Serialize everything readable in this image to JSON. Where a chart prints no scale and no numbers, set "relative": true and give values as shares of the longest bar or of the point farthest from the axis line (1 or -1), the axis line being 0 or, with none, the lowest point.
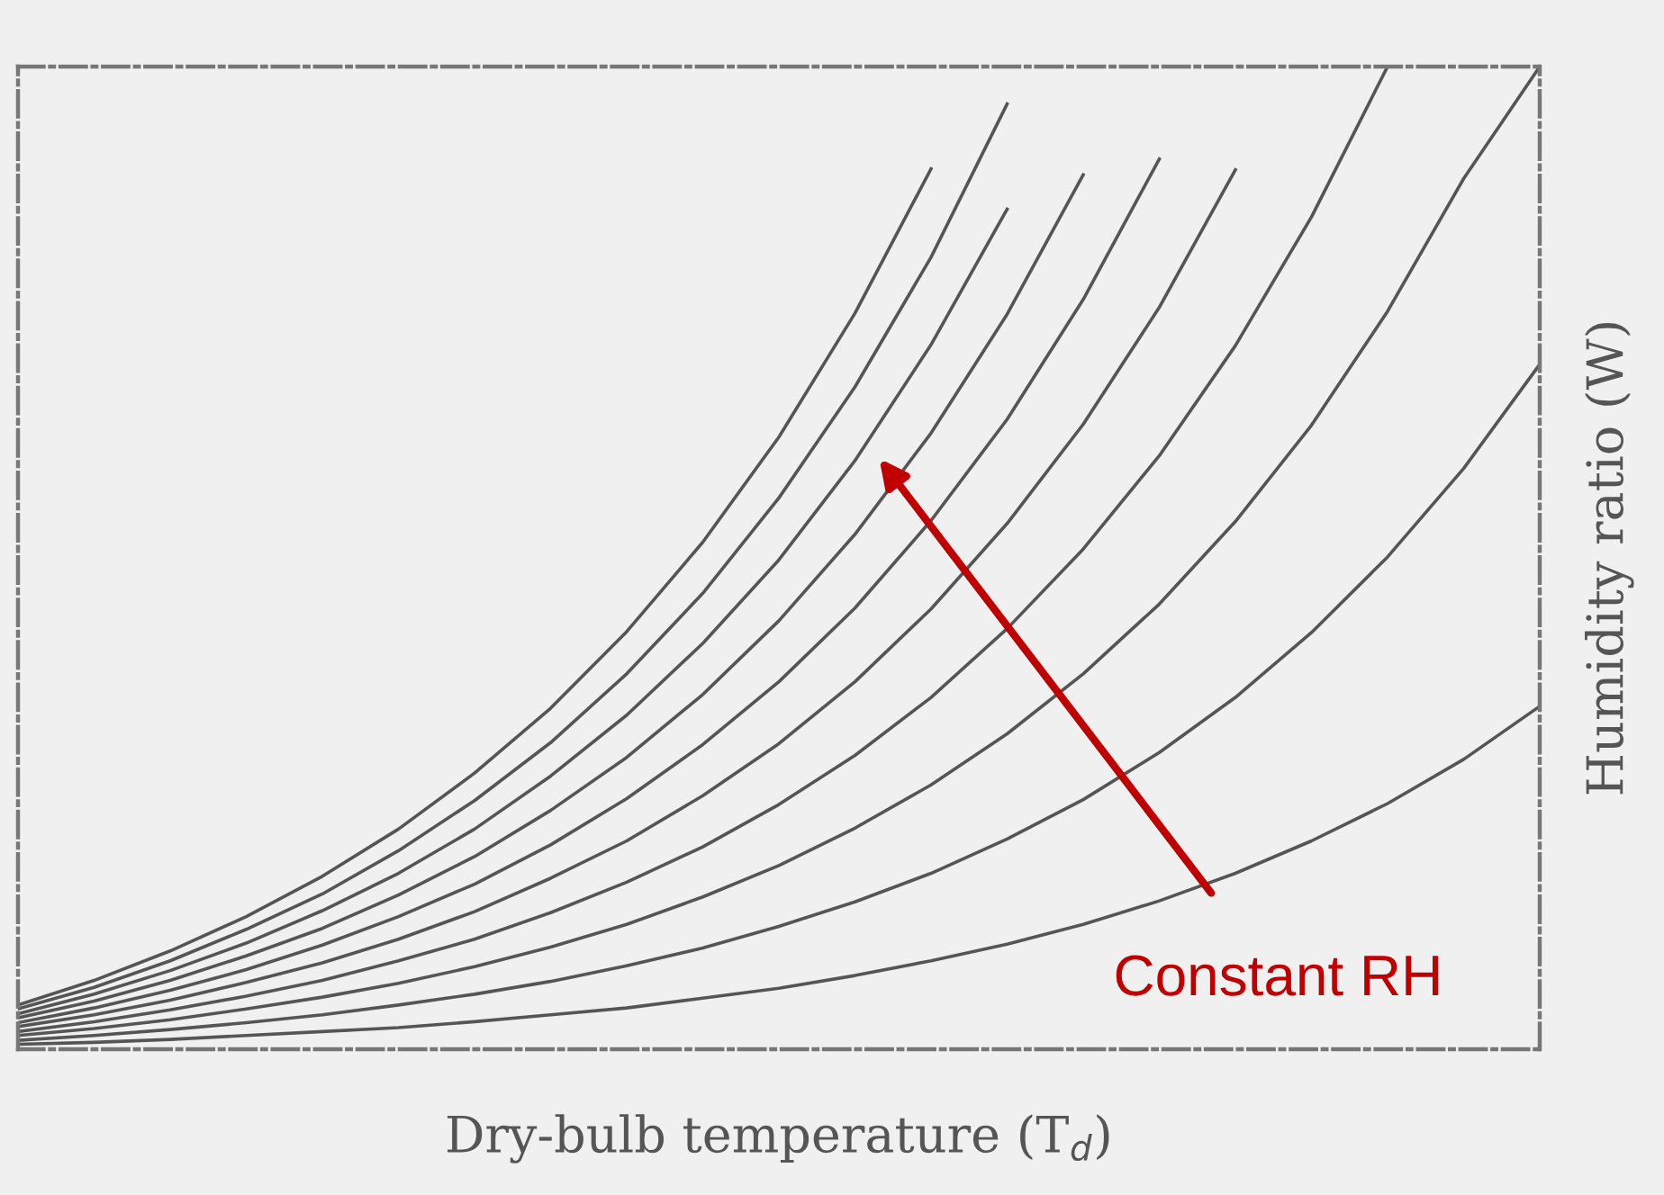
{
  "chart_data": {
    "type": "line",
    "relative": true,
    "tick_labels": false,
    "xlabel": "Dry-bulb temperature (T$_{d}$)",
    "ylabel": "Humidity ratio (W)",
    "annotations": [
      "Constant RH"
    ],
    "categories": [
      null,
      null,
      null,
      null,
      null,
      null,
      null,
      null,
      null,
      null,
      null,
      null,
      null,
      null,
      null,
      null,
      null,
      null,
      null,
      null,
      null
    ],
    "series": [
      {
        "color": "#555555",
        "values": [
          0.005,
          0.007,
          0.01,
          0.014,
          0.018,
          0.022,
          0.028,
          0.035,
          0.042,
          0.052,
          0.062,
          0.075,
          0.09,
          0.107,
          0.127,
          0.151,
          0.179,
          0.212,
          0.25,
          0.295,
          0.349
        ]
      },
      {
        "color": "#555555",
        "values": [
          0.009,
          0.014,
          0.02,
          0.027,
          0.035,
          0.045,
          0.056,
          0.069,
          0.085,
          0.103,
          0.125,
          0.15,
          0.179,
          0.214,
          0.254,
          0.302,
          0.358,
          0.424,
          0.501,
          0.591,
          0.697
        ]
      },
      {
        "color": "#555555",
        "values": [
          0.014,
          0.021,
          0.03,
          0.041,
          0.053,
          0.067,
          0.084,
          0.104,
          0.127,
          0.155,
          0.187,
          0.225,
          0.269,
          0.321,
          0.382,
          0.453,
          0.537,
          0.635,
          0.751,
          0.886,
          1.0
        ]
      },
      {
        "color": "#555555",
        "values": [
          0.018,
          0.028,
          0.04,
          0.054,
          0.07,
          0.09,
          0.112,
          0.139,
          0.17,
          0.206,
          0.249,
          0.299,
          0.358,
          0.428,
          0.509,
          0.604,
          0.716,
          0.847,
          1.0,
          null,
          null
        ]
      },
      {
        "color": "#555555",
        "values": [
          0.023,
          0.035,
          0.05,
          0.068,
          0.088,
          0.112,
          0.14,
          0.174,
          0.212,
          0.258,
          0.311,
          0.374,
          0.448,
          0.535,
          0.636,
          0.755,
          0.895,
          null,
          null,
          null,
          null
        ]
      },
      {
        "color": "#555555",
        "values": [
          0.027,
          0.042,
          0.06,
          0.081,
          0.106,
          0.135,
          0.168,
          0.208,
          0.255,
          0.31,
          0.374,
          0.449,
          0.538,
          0.641,
          0.763,
          0.906,
          null,
          null,
          null,
          null,
          null
        ]
      },
      {
        "color": "#555555",
        "values": [
          0.032,
          0.049,
          0.07,
          0.095,
          0.123,
          0.157,
          0.196,
          0.243,
          0.297,
          0.361,
          0.436,
          0.524,
          0.627,
          0.748,
          0.89,
          null,
          null,
          null,
          null,
          null,
          null
        ]
      },
      {
        "color": "#555555",
        "values": [
          0.036,
          0.056,
          0.08,
          0.108,
          0.141,
          0.179,
          0.224,
          0.278,
          0.34,
          0.413,
          0.498,
          0.599,
          0.717,
          0.855,
          null,
          null,
          null,
          null,
          null,
          null,
          null
        ]
      },
      {
        "color": "#555555",
        "values": [
          0.041,
          0.063,
          0.09,
          0.122,
          0.158,
          0.202,
          0.253,
          0.312,
          0.382,
          0.464,
          0.561,
          0.674,
          0.806,
          0.962,
          null,
          null,
          null,
          null,
          null,
          null,
          null
        ]
      },
      {
        "color": "#555555",
        "values": [
          0.045,
          0.07,
          0.1,
          0.135,
          0.176,
          0.224,
          0.281,
          0.347,
          0.425,
          0.516,
          0.623,
          0.749,
          0.896,
          null,
          null,
          null,
          null,
          null,
          null,
          null,
          null
        ]
      }
    ]
  }
}
